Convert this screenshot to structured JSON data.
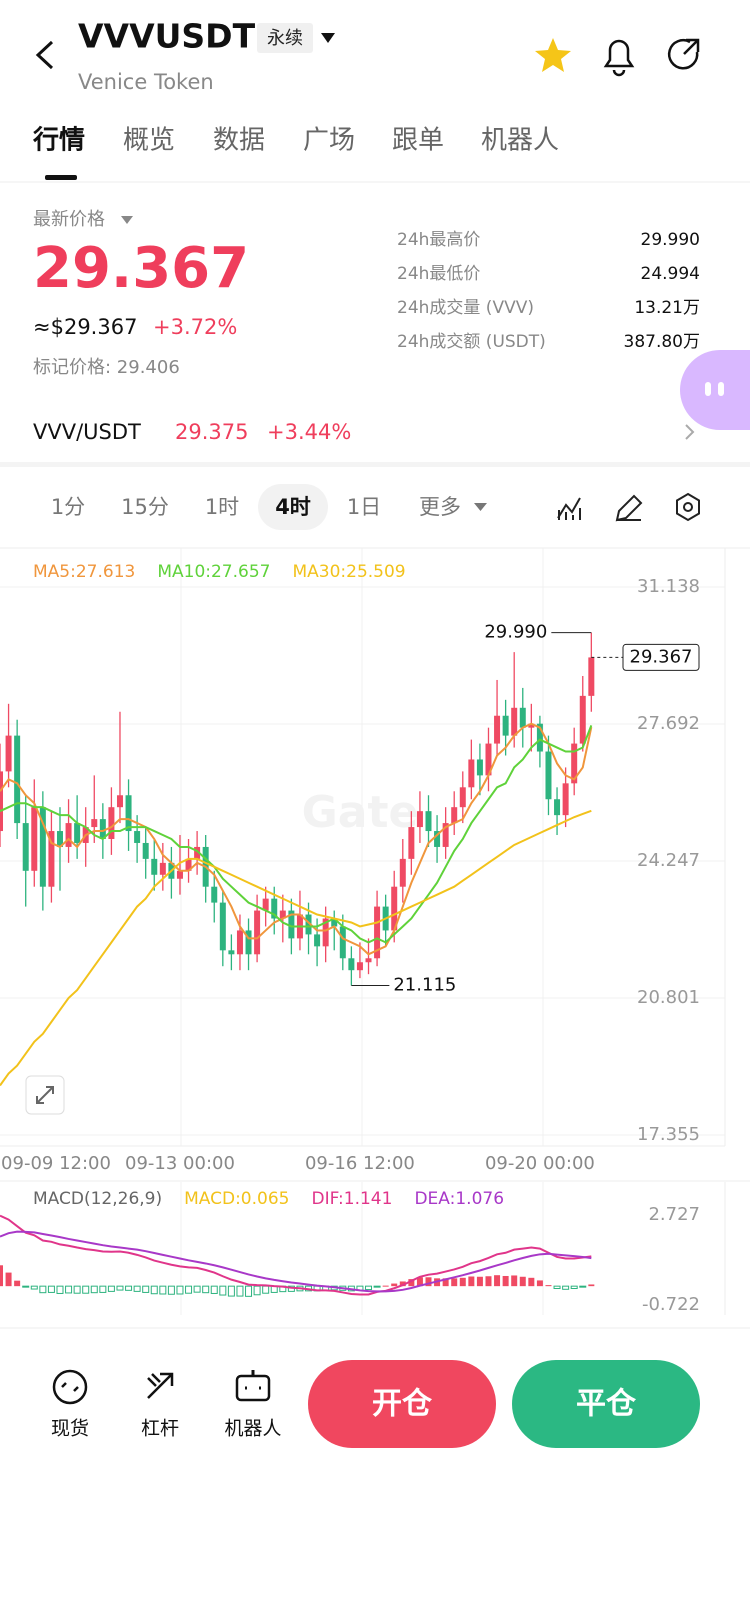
{
  "header": {
    "symbol": "VVVUSDT",
    "badge": "永续",
    "name": "Venice Token"
  },
  "tabs": [
    "行情",
    "概览",
    "数据",
    "广场",
    "跟单",
    "机器人"
  ],
  "price": {
    "label": "最新价格",
    "last": "29.367",
    "usd": "≈$29.367",
    "change": "+3.72%",
    "mark": "标记价格: 29.406"
  },
  "stats": [
    {
      "label": "24h最高价",
      "value": "29.990"
    },
    {
      "label": "24h最低价",
      "value": "24.994"
    },
    {
      "label": "24h成交量 (VVV)",
      "value": "13.21万"
    },
    {
      "label": "24h成交额 (USDT)",
      "value": "387.80万"
    }
  ],
  "pair": {
    "name": "VVV/USDT",
    "price": "29.375",
    "change": "+3.44%"
  },
  "intervals": [
    "1分",
    "15分",
    "1时",
    "4时",
    "1日",
    "更多"
  ],
  "watermark": "Gate",
  "chart_data": [
    {
      "type": "candlestick",
      "up_color": "#ef4a63",
      "down_color": "#2db37f",
      "categories": [
        "09-09 12:00",
        null,
        null,
        null,
        null,
        null,
        null,
        null,
        null,
        null,
        null,
        null,
        null,
        null,
        null,
        null,
        null,
        null,
        null,
        null,
        null,
        "09-13 00:00",
        null,
        null,
        null,
        null,
        null,
        null,
        null,
        null,
        null,
        null,
        null,
        null,
        null,
        null,
        null,
        null,
        null,
        null,
        null,
        null,
        "09-16 12:00",
        null,
        null,
        null,
        null,
        null,
        null,
        null,
        null,
        null,
        null,
        null,
        null,
        null,
        null,
        null,
        null,
        null,
        null,
        null,
        null,
        "09-20 00:00",
        null,
        null,
        null,
        null,
        null,
        null
      ],
      "open": [
        25.0,
        26.5,
        27.4,
        25.2,
        24.0,
        25.6,
        23.6,
        25.0,
        24.6,
        25.2,
        24.7,
        25.1,
        25.3,
        24.8,
        25.6,
        25.9,
        25.0,
        24.7,
        24.3,
        23.9,
        24.2,
        23.8,
        24.0,
        24.3,
        24.6,
        23.6,
        23.2,
        22.0,
        21.9,
        22.5,
        21.9,
        23.0,
        23.3,
        22.8,
        23.0,
        22.3,
        22.9,
        22.4,
        22.1,
        22.8,
        22.6,
        21.8,
        21.5,
        21.7,
        21.8,
        23.1,
        22.5,
        23.6,
        24.3,
        25.1,
        25.5,
        25.0,
        24.6,
        25.2,
        25.6,
        26.1,
        26.8,
        26.4,
        27.2,
        27.9,
        27.4,
        28.1,
        27.6,
        27.7,
        27.0,
        25.8,
        25.4,
        26.2,
        27.2,
        28.4
      ],
      "high": [
        27.2,
        28.2,
        27.8,
        25.9,
        26.3,
        26.0,
        25.5,
        25.6,
        25.8,
        25.9,
        25.6,
        26.4,
        25.7,
        26.1,
        28.0,
        26.3,
        25.4,
        25.1,
        24.8,
        24.7,
        24.6,
        24.9,
        24.8,
        25.0,
        24.9,
        24.0,
        23.5,
        22.4,
        22.9,
        22.8,
        23.4,
        23.6,
        23.6,
        23.4,
        23.3,
        23.5,
        23.2,
        22.8,
        23.1,
        23.0,
        22.9,
        22.1,
        22.2,
        22.3,
        23.5,
        23.4,
        24.0,
        24.8,
        25.5,
        26.0,
        25.9,
        25.4,
        25.6,
        26.0,
        26.5,
        27.3,
        27.2,
        27.6,
        28.8,
        28.3,
        29.5,
        28.6,
        28.2,
        27.9,
        27.4,
        26.1,
        26.6,
        27.6,
        28.9,
        29.99
      ],
      "low": [
        24.6,
        26.1,
        24.8,
        23.1,
        23.6,
        23.0,
        23.2,
        23.5,
        24.2,
        24.3,
        24.1,
        24.7,
        24.3,
        24.4,
        25.2,
        24.5,
        24.2,
        23.8,
        23.5,
        23.5,
        23.3,
        23.4,
        23.7,
        23.9,
        23.2,
        22.7,
        21.6,
        21.5,
        21.5,
        21.5,
        21.7,
        22.6,
        22.4,
        22.2,
        21.9,
        22.0,
        21.9,
        21.6,
        21.7,
        22.0,
        21.5,
        21.115,
        21.3,
        21.4,
        21.6,
        22.1,
        22.2,
        23.2,
        23.9,
        24.7,
        24.6,
        24.2,
        24.3,
        24.9,
        25.2,
        25.8,
        25.9,
        26.0,
        26.9,
        26.9,
        27.1,
        27.1,
        27.0,
        26.6,
        25.4,
        24.9,
        25.1,
        25.9,
        27.0,
        28.0
      ],
      "close": [
        26.5,
        27.4,
        25.2,
        24.0,
        25.6,
        23.6,
        25.0,
        24.6,
        25.2,
        24.7,
        25.1,
        25.3,
        24.8,
        25.6,
        25.9,
        25.0,
        24.7,
        24.3,
        23.9,
        24.2,
        23.8,
        24.0,
        24.3,
        24.6,
        23.6,
        23.2,
        22.0,
        21.9,
        22.5,
        21.9,
        23.0,
        23.3,
        22.8,
        23.0,
        22.3,
        22.9,
        22.4,
        22.1,
        22.8,
        22.6,
        21.8,
        21.5,
        21.7,
        21.8,
        23.1,
        22.5,
        23.6,
        24.3,
        25.1,
        25.5,
        25.0,
        24.6,
        25.2,
        25.6,
        26.1,
        26.8,
        26.4,
        27.2,
        27.9,
        27.4,
        28.1,
        27.6,
        27.7,
        27.0,
        25.8,
        25.4,
        26.2,
        27.2,
        28.4,
        29.367
      ],
      "series": [
        {
          "name": "MA5:27.613",
          "color": "#f0963c",
          "values": [
            26.0,
            26.3,
            26.2,
            25.9,
            25.7,
            25.2,
            24.7,
            24.6,
            24.8,
            24.6,
            24.9,
            25.0,
            25.0,
            25.1,
            25.3,
            25.3,
            25.2,
            25.1,
            24.8,
            24.4,
            24.2,
            24.0,
            24.0,
            24.2,
            24.1,
            23.9,
            23.5,
            23.1,
            22.6,
            22.3,
            22.3,
            22.5,
            22.7,
            22.8,
            22.9,
            22.9,
            22.7,
            22.5,
            22.5,
            22.6,
            22.3,
            22.2,
            22.1,
            21.9,
            22.0,
            22.1,
            22.5,
            23.1,
            23.7,
            24.2,
            24.7,
            24.9,
            25.1,
            25.2,
            25.3,
            25.7,
            26.0,
            26.4,
            26.9,
            27.1,
            27.4,
            27.6,
            27.7,
            27.6,
            27.2,
            26.7,
            26.4,
            26.3,
            26.6,
            27.613
          ]
        },
        {
          "name": "MA10:27.657",
          "color": "#5fd23a",
          "values": [
            25.5,
            25.6,
            25.7,
            25.7,
            25.6,
            25.6,
            25.5,
            25.4,
            25.4,
            25.2,
            25.1,
            24.9,
            24.8,
            25.0,
            25.0,
            25.1,
            25.1,
            25.1,
            25.0,
            24.9,
            24.8,
            24.6,
            24.6,
            24.5,
            24.3,
            24.1,
            23.8,
            23.6,
            23.4,
            23.2,
            23.1,
            23.0,
            22.9,
            22.7,
            22.6,
            22.6,
            22.6,
            22.6,
            22.7,
            22.8,
            22.6,
            22.5,
            22.3,
            22.2,
            22.3,
            22.2,
            22.4,
            22.6,
            22.8,
            23.1,
            23.4,
            23.7,
            24.1,
            24.5,
            24.8,
            25.2,
            25.5,
            25.8,
            26.1,
            26.2,
            26.6,
            26.8,
            27.1,
            27.3,
            27.2,
            27.1,
            27.0,
            27.0,
            27.1,
            27.657
          ]
        },
        {
          "name": "MA30:25.509",
          "color": "#f2c21b",
          "values": [
            18.6,
            18.9,
            19.1,
            19.4,
            19.7,
            19.9,
            20.2,
            20.5,
            20.8,
            21.0,
            21.3,
            21.6,
            21.9,
            22.2,
            22.5,
            22.8,
            23.1,
            23.3,
            23.6,
            23.8,
            24.0,
            24.2,
            24.3,
            24.3,
            24.2,
            24.1,
            24.0,
            23.9,
            23.8,
            23.7,
            23.6,
            23.5,
            23.4,
            23.3,
            23.2,
            23.1,
            23.0,
            22.9,
            22.85,
            22.8,
            22.75,
            22.7,
            22.6,
            22.65,
            22.7,
            22.8,
            22.9,
            23.0,
            23.1,
            23.2,
            23.3,
            23.4,
            23.5,
            23.6,
            23.75,
            23.9,
            24.05,
            24.2,
            24.35,
            24.5,
            24.65,
            24.75,
            24.85,
            24.95,
            25.05,
            25.15,
            25.25,
            25.35,
            25.43,
            25.509
          ]
        }
      ],
      "ylim": [
        17.355,
        31.138
      ],
      "yticks": [
        31.138,
        27.692,
        24.247,
        20.801,
        17.355
      ],
      "grid": true,
      "annotations": [
        {
          "label": "29.990",
          "value": 29.99
        },
        {
          "label": "21.115",
          "value": 21.115
        },
        {
          "label": "29.367",
          "value": 29.367
        }
      ]
    },
    {
      "type": "macd",
      "title": "MACD(12,26,9)",
      "up_color": "#ef4a63",
      "down_color": "#2db37f",
      "series": [
        {
          "name": "MACD:0.065",
          "color": "#f2c21b",
          "values": [
            0.8,
            0.52,
            0.21,
            -0.03,
            -0.11,
            -0.25,
            -0.24,
            -0.28,
            -0.26,
            -0.27,
            -0.27,
            -0.25,
            -0.24,
            -0.2,
            -0.15,
            -0.16,
            -0.2,
            -0.24,
            -0.29,
            -0.3,
            -0.31,
            -0.3,
            -0.27,
            -0.23,
            -0.25,
            -0.28,
            -0.34,
            -0.38,
            -0.38,
            -0.39,
            -0.33,
            -0.27,
            -0.24,
            -0.21,
            -0.2,
            -0.18,
            -0.18,
            -0.18,
            -0.15,
            -0.14,
            -0.16,
            -0.18,
            -0.16,
            -0.13,
            -0.02,
            0.02,
            0.1,
            0.18,
            0.27,
            0.34,
            0.34,
            0.3,
            0.3,
            0.3,
            0.32,
            0.37,
            0.36,
            0.38,
            0.42,
            0.39,
            0.41,
            0.36,
            0.32,
            0.22,
            0.04,
            -0.09,
            -0.12,
            -0.09,
            -0.02,
            0.065
          ]
        },
        {
          "name": "DIF:1.141",
          "color": "#e0358a",
          "values": [
            2.7,
            2.55,
            2.3,
            2.05,
            1.95,
            1.75,
            1.7,
            1.6,
            1.55,
            1.48,
            1.42,
            1.38,
            1.33,
            1.32,
            1.33,
            1.28,
            1.2,
            1.1,
            0.98,
            0.9,
            0.82,
            0.76,
            0.72,
            0.7,
            0.62,
            0.52,
            0.38,
            0.25,
            0.16,
            0.06,
            0.04,
            0.03,
            0.0,
            -0.02,
            -0.06,
            -0.08,
            -0.12,
            -0.16,
            -0.16,
            -0.18,
            -0.24,
            -0.3,
            -0.32,
            -0.32,
            -0.22,
            -0.18,
            -0.08,
            0.04,
            0.2,
            0.36,
            0.44,
            0.48,
            0.56,
            0.64,
            0.74,
            0.88,
            0.96,
            1.08,
            1.22,
            1.28,
            1.4,
            1.44,
            1.48,
            1.44,
            1.28,
            1.12,
            1.06,
            1.06,
            1.1,
            1.141
          ]
        },
        {
          "name": "DEA:1.076",
          "color": "#a838c8",
          "values": [
            1.9,
            2.03,
            2.09,
            2.08,
            2.06,
            2.0,
            1.94,
            1.88,
            1.81,
            1.75,
            1.69,
            1.63,
            1.57,
            1.52,
            1.48,
            1.44,
            1.4,
            1.34,
            1.27,
            1.2,
            1.13,
            1.06,
            0.99,
            0.93,
            0.87,
            0.8,
            0.72,
            0.63,
            0.54,
            0.45,
            0.37,
            0.3,
            0.24,
            0.19,
            0.14,
            0.1,
            0.06,
            0.02,
            -0.01,
            -0.04,
            -0.08,
            -0.12,
            -0.16,
            -0.19,
            -0.2,
            -0.2,
            -0.18,
            -0.14,
            -0.07,
            0.02,
            0.1,
            0.18,
            0.26,
            0.34,
            0.42,
            0.51,
            0.6,
            0.7,
            0.8,
            0.89,
            0.99,
            1.08,
            1.16,
            1.22,
            1.24,
            1.21,
            1.18,
            1.15,
            1.12,
            1.076
          ]
        }
      ],
      "ylim": [
        -0.722,
        2.727
      ],
      "yticks": [
        2.727,
        -0.722
      ]
    }
  ],
  "bottom": {
    "items": [
      "现货",
      "杠杆",
      "机器人"
    ],
    "buttons": [
      "开仓",
      "平仓"
    ]
  }
}
